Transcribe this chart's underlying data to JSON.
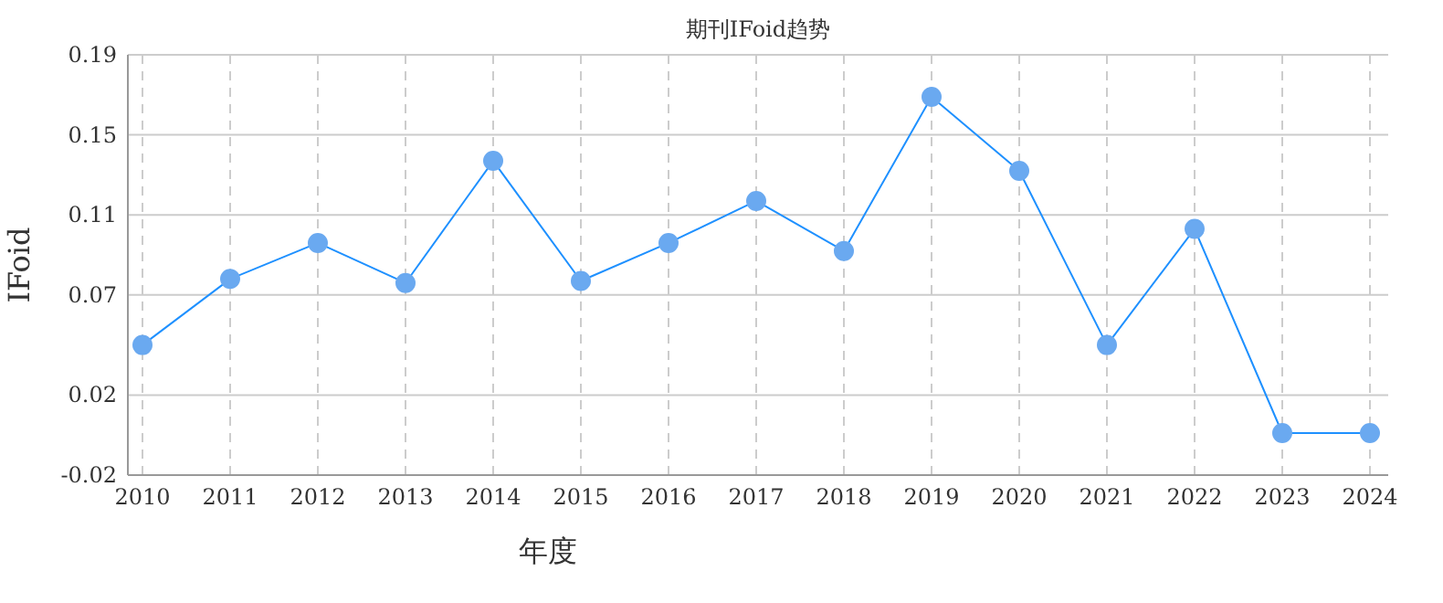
{
  "chart_data": {
    "type": "line",
    "title": "期刊IFoid趋势",
    "xlabel": "年度",
    "ylabel": "IFoid",
    "categories": [
      "2010",
      "2011",
      "2012",
      "2013",
      "2014",
      "2015",
      "2016",
      "2017",
      "2018",
      "2019",
      "2020",
      "2021",
      "2022",
      "2023",
      "2024"
    ],
    "values": [
      0.045,
      0.078,
      0.096,
      0.076,
      0.137,
      0.077,
      0.096,
      0.117,
      0.092,
      0.169,
      0.132,
      0.045,
      0.103,
      0.001,
      0.001
    ],
    "color": "#1e90ff",
    "marker": "circle",
    "grid": true,
    "ylim": [
      -0.02,
      0.19
    ],
    "yticks": [
      -0.02,
      0.02,
      0.07,
      0.11,
      0.15,
      0.19
    ]
  }
}
